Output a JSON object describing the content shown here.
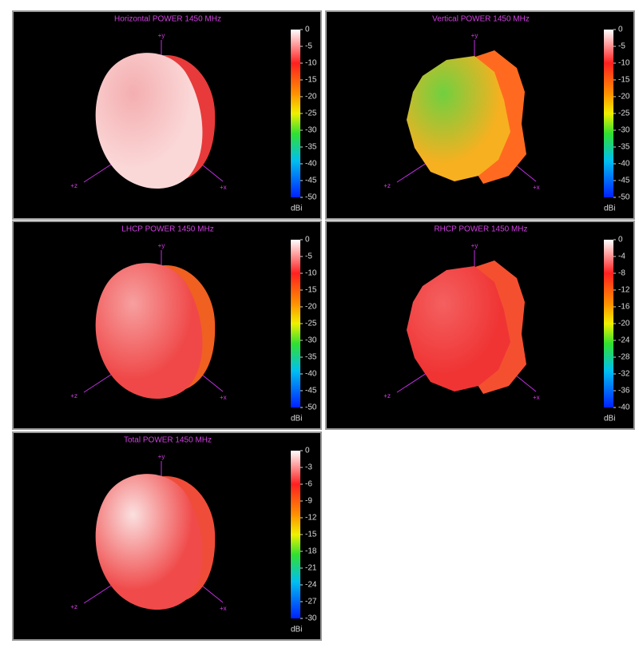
{
  "chart_data": [
    {
      "type": "pattern3d",
      "title": "Horizontal POWER 1450  MHz",
      "axis_labels": [
        "+y",
        "+z",
        "+x"
      ],
      "colorbar_label": "dBi",
      "clim": [
        0,
        -50
      ],
      "cticks": [
        0,
        -5,
        -10,
        -15,
        -20,
        -25,
        -30,
        -35,
        -40,
        -45,
        -50
      ]
    },
    {
      "type": "pattern3d",
      "title": "Vertical POWER 1450  MHz",
      "axis_labels": [
        "+y",
        "+z",
        "+x"
      ],
      "colorbar_label": "dBi",
      "clim": [
        0,
        -50
      ],
      "cticks": [
        0,
        -5,
        -10,
        -15,
        -20,
        -25,
        -30,
        -35,
        -40,
        -45,
        -50
      ]
    },
    {
      "type": "pattern3d",
      "title": "LHCP POWER 1450  MHz",
      "axis_labels": [
        "+y",
        "+z",
        "+x"
      ],
      "colorbar_label": "dBi",
      "clim": [
        0,
        -50
      ],
      "cticks": [
        0,
        -5,
        -10,
        -15,
        -20,
        -25,
        -30,
        -35,
        -40,
        -45,
        -50
      ]
    },
    {
      "type": "pattern3d",
      "title": "RHCP POWER 1450  MHz",
      "axis_labels": [
        "+y",
        "+z",
        "+x"
      ],
      "colorbar_label": "dBi",
      "clim": [
        0,
        -40
      ],
      "cticks": [
        0,
        -4,
        -8,
        -12,
        -16,
        -20,
        -24,
        -28,
        -32,
        -36,
        -40
      ]
    },
    {
      "type": "pattern3d",
      "title": "Total POWER 1450  MHz",
      "axis_labels": [
        "+y",
        "+z",
        "+x"
      ],
      "colorbar_label": "dBi",
      "clim": [
        0,
        -30
      ],
      "cticks": [
        0,
        -3,
        -6,
        -9,
        -12,
        -15,
        -18,
        -21,
        -24,
        -27,
        -30
      ]
    }
  ]
}
